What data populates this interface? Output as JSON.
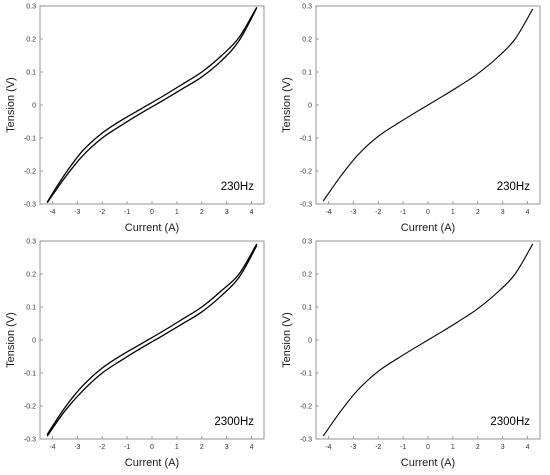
{
  "figure": {
    "background": "#ffffff",
    "curve_color": "#000000"
  },
  "chart_data": [
    {
      "type": "line",
      "panel": "top-left",
      "title": "",
      "annotation": "230Hz",
      "xlabel": "Current (A)",
      "ylabel": "Tension (V)",
      "xlim": [
        -4.5,
        4.5
      ],
      "ylim": [
        -0.3,
        0.3
      ],
      "xticks": [
        -4,
        -3,
        -2,
        -1,
        0,
        1,
        2,
        3,
        4
      ],
      "xtick_labels": [
        "-4",
        "-3",
        "-2",
        "-1",
        "0",
        "1",
        "2",
        "3",
        "4"
      ],
      "yticks": [
        -0.3,
        -0.2,
        -0.1,
        0,
        0.1,
        0.2,
        0.3
      ],
      "ytick_labels": [
        "-0.3",
        "-0.2",
        "-0.1",
        "0",
        "0.1",
        "0.2",
        "0.3"
      ],
      "grid": false,
      "series": [
        {
          "x": [
            -4.2,
            -3.5,
            -2.8,
            -2.0,
            -1.2,
            -0.4,
            0.4,
            1.2,
            2.0,
            2.8,
            3.5,
            4.2
          ],
          "y": [
            -0.295,
            -0.22,
            -0.155,
            -0.1,
            -0.06,
            -0.023,
            0.012,
            0.048,
            0.085,
            0.135,
            0.195,
            0.293
          ]
        },
        {
          "x": [
            -4.2,
            -3.5,
            -2.8,
            -2.0,
            -1.2,
            -0.4,
            0.4,
            1.2,
            2.0,
            2.8,
            3.5,
            4.2
          ],
          "y": [
            -0.293,
            -0.21,
            -0.14,
            -0.085,
            -0.045,
            -0.01,
            0.025,
            0.062,
            0.1,
            0.15,
            0.205,
            0.295
          ]
        }
      ]
    },
    {
      "type": "line",
      "panel": "top-right",
      "title": "",
      "annotation": "230Hz",
      "xlabel": "Current (A)",
      "ylabel": "Tension (V)",
      "xlim": [
        -4.5,
        4.5
      ],
      "ylim": [
        -0.3,
        0.3
      ],
      "xticks": [
        -4,
        -3,
        -2,
        -1,
        0,
        1,
        2,
        3,
        4
      ],
      "xtick_labels": [
        "-4",
        "-3",
        "-2",
        "-1",
        "0",
        "1",
        "2",
        "3",
        "4"
      ],
      "yticks": [
        -0.3,
        -0.2,
        -0.1,
        0,
        0.1,
        0.2,
        0.3
      ],
      "ytick_labels": [
        "-0.3",
        "-0.2",
        "-0.1",
        "0",
        "0.1",
        "0.2",
        "0.3"
      ],
      "grid": false,
      "series": [
        {
          "x": [
            -4.2,
            -3.5,
            -2.8,
            -2.0,
            -1.2,
            -0.4,
            0.4,
            1.2,
            2.0,
            2.8,
            3.5,
            4.2
          ],
          "y": [
            -0.29,
            -0.215,
            -0.15,
            -0.095,
            -0.055,
            -0.018,
            0.018,
            0.055,
            0.095,
            0.145,
            0.2,
            0.29
          ]
        }
      ]
    },
    {
      "type": "line",
      "panel": "bottom-left",
      "title": "",
      "annotation": "2300Hz",
      "xlabel": "Current (A)",
      "ylabel": "Tension (V)",
      "xlim": [
        -4.5,
        4.5
      ],
      "ylim": [
        -0.3,
        0.3
      ],
      "xticks": [
        -4,
        -3,
        -2,
        -1,
        0,
        1,
        2,
        3,
        4
      ],
      "xtick_labels": [
        "-4",
        "-3",
        "-2",
        "-1",
        "0",
        "1",
        "2",
        "3",
        "4"
      ],
      "yticks": [
        -0.3,
        -0.2,
        -0.1,
        0,
        0.1,
        0.2,
        0.3
      ],
      "ytick_labels": [
        "-0.3",
        "-0.2",
        "-0.1",
        "0",
        "0.1",
        "0.2",
        "0.3"
      ],
      "grid": false,
      "series": [
        {
          "x": [
            -4.2,
            -3.5,
            -2.8,
            -2.0,
            -1.2,
            -0.4,
            0.4,
            1.2,
            2.0,
            2.8,
            3.5,
            4.2
          ],
          "y": [
            -0.29,
            -0.215,
            -0.155,
            -0.1,
            -0.06,
            -0.023,
            0.012,
            0.048,
            0.085,
            0.135,
            0.19,
            0.285
          ]
        },
        {
          "x": [
            -4.2,
            -3.5,
            -2.8,
            -2.0,
            -1.2,
            -0.4,
            0.4,
            1.2,
            2.0,
            2.8,
            3.5,
            4.2
          ],
          "y": [
            -0.285,
            -0.205,
            -0.14,
            -0.085,
            -0.045,
            -0.01,
            0.025,
            0.062,
            0.1,
            0.15,
            0.2,
            0.29
          ]
        }
      ]
    },
    {
      "type": "line",
      "panel": "bottom-right",
      "title": "",
      "annotation": "2300Hz",
      "xlabel": "Current (A)",
      "ylabel": "Tension (V)",
      "xlim": [
        -4.5,
        4.5
      ],
      "ylim": [
        -0.3,
        0.3
      ],
      "xticks": [
        -4,
        -3,
        -2,
        -1,
        0,
        1,
        2,
        3,
        4
      ],
      "xtick_labels": [
        "-4",
        "-3",
        "-2",
        "-1",
        "0",
        "1",
        "2",
        "3",
        "4"
      ],
      "yticks": [
        -0.3,
        -0.2,
        -0.1,
        0,
        0.1,
        0.2,
        0.3
      ],
      "ytick_labels": [
        "-0.3",
        "-0.2",
        "-0.1",
        "0",
        "0.1",
        "0.2",
        "0.3"
      ],
      "grid": false,
      "series": [
        {
          "x": [
            -4.2,
            -3.5,
            -2.8,
            -2.0,
            -1.2,
            -0.4,
            0.4,
            1.2,
            2.0,
            2.8,
            3.5,
            4.2
          ],
          "y": [
            -0.29,
            -0.215,
            -0.15,
            -0.095,
            -0.055,
            -0.018,
            0.018,
            0.055,
            0.095,
            0.145,
            0.2,
            0.29
          ]
        }
      ]
    }
  ]
}
